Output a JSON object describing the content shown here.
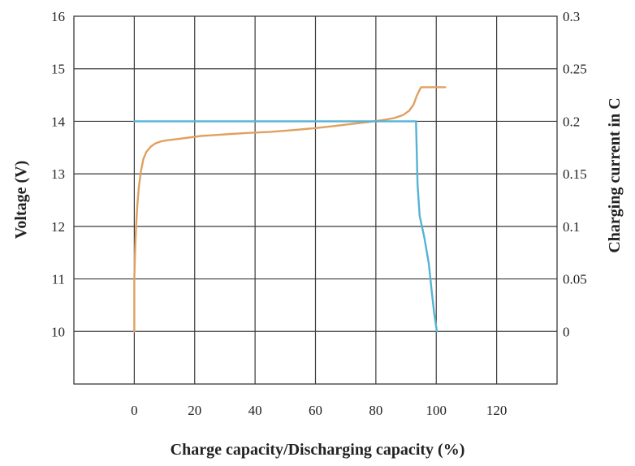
{
  "chart_data": {
    "type": "line",
    "title": "",
    "xlabel": "Charge capacity/Discharging capacity (%)",
    "ylabel_left": "Voltage (V)",
    "ylabel_right": "Charging current in C",
    "xlim": [
      -20,
      140
    ],
    "ylim_left": [
      9,
      16
    ],
    "ylim_right": [
      -0.05,
      0.3
    ],
    "x_ticks": [
      "0",
      "20",
      "40",
      "60",
      "80",
      "100",
      "120"
    ],
    "y_left_ticks": [
      "10",
      "11",
      "12",
      "13",
      "14",
      "15",
      "16"
    ],
    "y_right_ticks": [
      "0",
      "0.05",
      "0.1",
      "0.15",
      "0.2",
      "0.25",
      "0.3"
    ],
    "grid": true,
    "series": [
      {
        "color": "#e0a060",
        "axis": "left",
        "x": [
          0,
          0,
          0.3,
          0.6,
          1,
          1.5,
          2.2,
          3,
          4,
          5.5,
          7,
          9,
          11,
          14,
          18,
          22,
          27,
          32,
          38,
          45,
          52,
          60,
          66,
          72,
          78,
          82,
          86,
          89,
          91,
          92.5,
          93.5,
          94.5,
          95,
          100,
          103
        ],
        "y": [
          10.0,
          11.0,
          11.6,
          12.0,
          12.4,
          12.75,
          13.05,
          13.28,
          13.42,
          13.52,
          13.58,
          13.62,
          13.64,
          13.66,
          13.69,
          13.72,
          13.74,
          13.76,
          13.78,
          13.8,
          13.83,
          13.87,
          13.91,
          13.95,
          13.99,
          14.02,
          14.06,
          14.12,
          14.2,
          14.32,
          14.48,
          14.6,
          14.65,
          14.65,
          14.65
        ]
      },
      {
        "color": "#55b3d4",
        "axis": "right",
        "x": [
          0,
          15,
          30,
          50,
          70,
          85,
          93.3,
          93.5,
          93.8,
          94.5,
          96,
          97.5,
          98.5,
          99.3,
          100.2
        ],
        "y": [
          0.2,
          0.2,
          0.2,
          0.2,
          0.2,
          0.2,
          0.2,
          0.175,
          0.14,
          0.11,
          0.09,
          0.065,
          0.038,
          0.018,
          0.0
        ]
      }
    ]
  }
}
